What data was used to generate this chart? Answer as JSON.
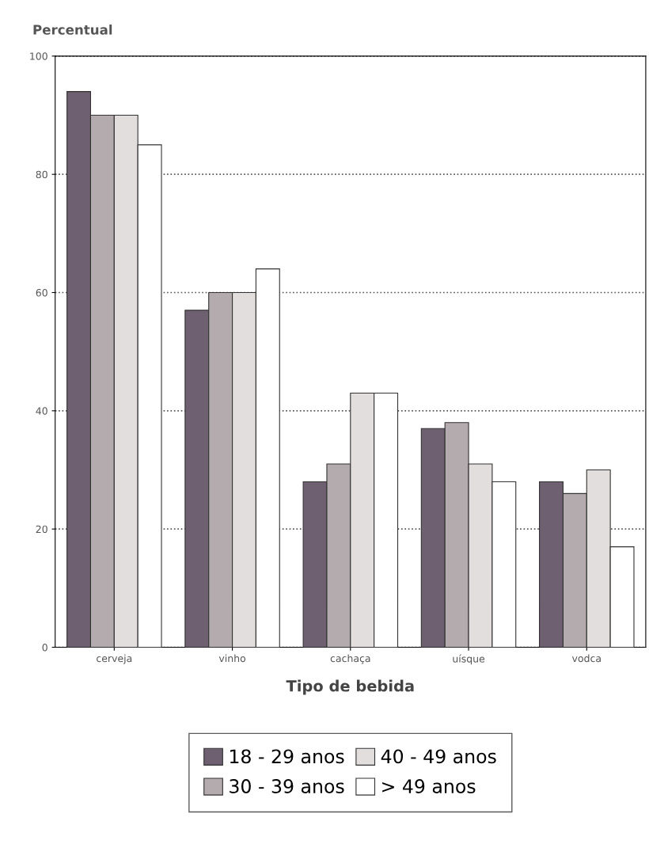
{
  "chart_data": {
    "type": "bar",
    "ylabel": "Percentual",
    "xlabel": "Tipo de bebida",
    "categories": [
      "cerveja",
      "vinho",
      "cachaça",
      "uísque",
      "vodca"
    ],
    "series": [
      {
        "name": "18 - 29 anos",
        "color": "#6e6070",
        "values": [
          94,
          57,
          28,
          37,
          28
        ]
      },
      {
        "name": "30 - 39 anos",
        "color": "#b3abad",
        "values": [
          90,
          60,
          31,
          38,
          26
        ]
      },
      {
        "name": "40 - 49 anos",
        "color": "#e2dede",
        "values": [
          90,
          60,
          43,
          31,
          30
        ]
      },
      {
        "name": "> 49 anos",
        "color": "#ffffff",
        "values": [
          85,
          64,
          43,
          28,
          17
        ]
      }
    ],
    "ylim": [
      0,
      100
    ],
    "yticks": [
      0,
      20,
      40,
      60,
      80,
      100
    ],
    "grid": "y",
    "legend": "bottom"
  }
}
